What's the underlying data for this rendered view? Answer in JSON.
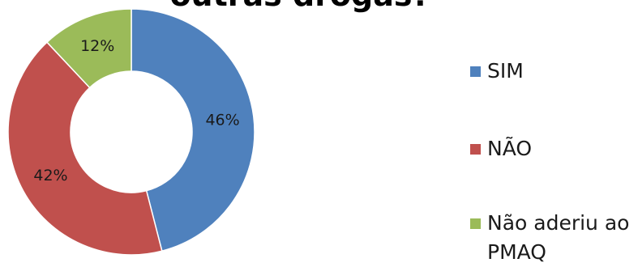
{
  "chart_data": {
    "type": "pie",
    "title": "outras drogas?",
    "categories": [
      "SIM",
      "NÃO",
      "Não aderiu ao PMAQ"
    ],
    "values": [
      46,
      42,
      12
    ],
    "data_labels": [
      "46%",
      "42%",
      "12%"
    ],
    "colors": [
      "#4F81BD",
      "#C0504D",
      "#9BBB59"
    ],
    "donut": true,
    "legend_position": "right"
  }
}
